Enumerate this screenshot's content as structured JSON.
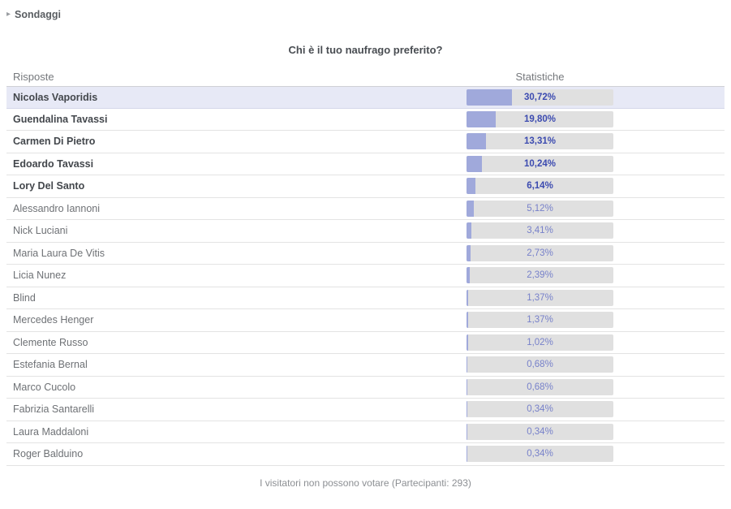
{
  "breadcrumb": {
    "label": "Sondaggi",
    "arrow_icon": "chevron-right"
  },
  "poll": {
    "title": "Chi è il tuo naufrago preferito?",
    "headers": {
      "answers": "Risposte",
      "stats": "Statistiche"
    },
    "rows": [
      {
        "name": "Nicolas Vaporidis",
        "pct_label": "30,72%",
        "pct": 30.72,
        "bold": true,
        "highlighted": true
      },
      {
        "name": "Guendalina Tavassi",
        "pct_label": "19,80%",
        "pct": 19.8,
        "bold": true,
        "highlighted": false
      },
      {
        "name": "Carmen Di Pietro",
        "pct_label": "13,31%",
        "pct": 13.31,
        "bold": true,
        "highlighted": false
      },
      {
        "name": "Edoardo Tavassi",
        "pct_label": "10,24%",
        "pct": 10.24,
        "bold": true,
        "highlighted": false
      },
      {
        "name": "Lory Del Santo",
        "pct_label": "6,14%",
        "pct": 6.14,
        "bold": true,
        "highlighted": false
      },
      {
        "name": "Alessandro Iannoni",
        "pct_label": "5,12%",
        "pct": 5.12,
        "bold": false,
        "highlighted": false
      },
      {
        "name": "Nick Luciani",
        "pct_label": "3,41%",
        "pct": 3.41,
        "bold": false,
        "highlighted": false
      },
      {
        "name": "Maria Laura De Vitis",
        "pct_label": "2,73%",
        "pct": 2.73,
        "bold": false,
        "highlighted": false
      },
      {
        "name": "Licia Nunez",
        "pct_label": "2,39%",
        "pct": 2.39,
        "bold": false,
        "highlighted": false
      },
      {
        "name": "Blind",
        "pct_label": "1,37%",
        "pct": 1.37,
        "bold": false,
        "highlighted": false
      },
      {
        "name": "Mercedes Henger",
        "pct_label": "1,37%",
        "pct": 1.37,
        "bold": false,
        "highlighted": false
      },
      {
        "name": "Clemente Russo",
        "pct_label": "1,02%",
        "pct": 1.02,
        "bold": false,
        "highlighted": false
      },
      {
        "name": "Estefania Bernal",
        "pct_label": "0,68%",
        "pct": 0.68,
        "bold": false,
        "highlighted": false
      },
      {
        "name": "Marco Cucolo",
        "pct_label": "0,68%",
        "pct": 0.68,
        "bold": false,
        "highlighted": false
      },
      {
        "name": "Fabrizia Santarelli",
        "pct_label": "0,34%",
        "pct": 0.34,
        "bold": false,
        "highlighted": false
      },
      {
        "name": "Laura Maddaloni",
        "pct_label": "0,34%",
        "pct": 0.34,
        "bold": false,
        "highlighted": false
      },
      {
        "name": "Roger Balduino",
        "pct_label": "0,34%",
        "pct": 0.34,
        "bold": false,
        "highlighted": false
      }
    ],
    "footer": "I visitatori non possono votare (Partecipanti: 293)",
    "participants": 293
  },
  "colors": {
    "bar_fill": "#a0a9db",
    "bar_track": "#e0e0e0",
    "pct_bold": "#3c4bb0",
    "pct_normal": "#7781ca",
    "highlight_row_bg": "#e7e9f6",
    "name_bold": "#43474c",
    "name_normal": "#6e7175",
    "divider": "#e3e3e3"
  }
}
